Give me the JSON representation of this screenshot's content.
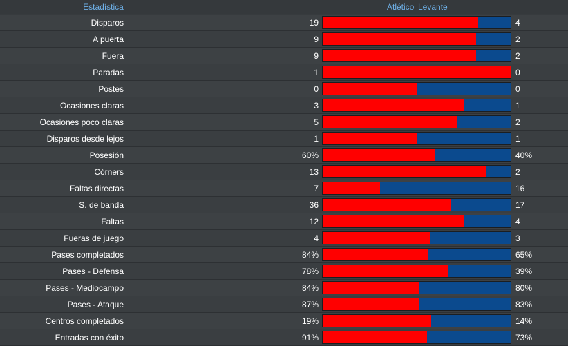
{
  "header": {
    "title": "Estadística",
    "home_team": "Atlético",
    "away_team": "Levante"
  },
  "colors": {
    "home": "#ff0000",
    "away": "#0b4a8e",
    "header_text": "#6fb2ea"
  },
  "stats": [
    {
      "label": "Disparos",
      "home": "19",
      "away": "4",
      "home_share": 0.826
    },
    {
      "label": "A puerta",
      "home": "9",
      "away": "2",
      "home_share": 0.818
    },
    {
      "label": "Fuera",
      "home": "9",
      "away": "2",
      "home_share": 0.818
    },
    {
      "label": "Paradas",
      "home": "1",
      "away": "0",
      "home_share": 1.0
    },
    {
      "label": "Postes",
      "home": "0",
      "away": "0",
      "home_share": 0.5
    },
    {
      "label": "Ocasiones claras",
      "home": "3",
      "away": "1",
      "home_share": 0.75
    },
    {
      "label": "Ocasiones poco claras",
      "home": "5",
      "away": "2",
      "home_share": 0.714
    },
    {
      "label": "Disparos desde lejos",
      "home": "1",
      "away": "1",
      "home_share": 0.5
    },
    {
      "label": "Posesión",
      "home": "60%",
      "away": "40%",
      "home_share": 0.6
    },
    {
      "label": "Córners",
      "home": "13",
      "away": "2",
      "home_share": 0.867
    },
    {
      "label": "Faltas directas",
      "home": "7",
      "away": "16",
      "home_share": 0.304
    },
    {
      "label": "S. de banda",
      "home": "36",
      "away": "17",
      "home_share": 0.679
    },
    {
      "label": "Faltas",
      "home": "12",
      "away": "4",
      "home_share": 0.75
    },
    {
      "label": "Fueras de juego",
      "home": "4",
      "away": "3",
      "home_share": 0.571
    },
    {
      "label": "Pases completados",
      "home": "84%",
      "away": "65%",
      "home_share": 0.564
    },
    {
      "label": "Pases - Defensa",
      "home": "78%",
      "away": "39%",
      "home_share": 0.667
    },
    {
      "label": "Pases - Mediocampo",
      "home": "84%",
      "away": "80%",
      "home_share": 0.512
    },
    {
      "label": "Pases - Ataque",
      "home": "87%",
      "away": "83%",
      "home_share": 0.512
    },
    {
      "label": "Centros completados",
      "home": "19%",
      "away": "14%",
      "home_share": 0.576
    },
    {
      "label": "Entradas con éxito",
      "home": "91%",
      "away": "73%",
      "home_share": 0.555
    }
  ]
}
